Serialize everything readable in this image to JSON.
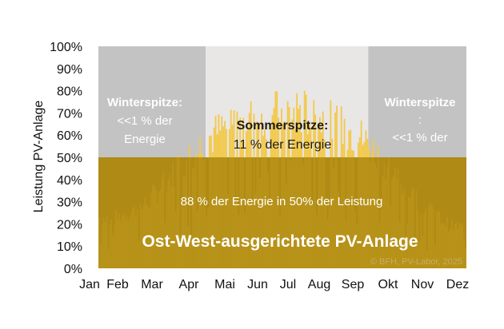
{
  "chart_data": {
    "type": "bar",
    "ylabel": "Leistung PV-Anlage",
    "ylim": [
      0,
      100
    ],
    "y_ticks": [
      "0%",
      "10%",
      "20%",
      "30%",
      "40%",
      "50%",
      "60%",
      "70%",
      "80%",
      "90%",
      "100%"
    ],
    "x_ticks": [
      "Jan",
      "Feb",
      "Mar",
      "Apr",
      "Mai",
      "Jun",
      "Jul",
      "Aug",
      "Sep",
      "Okt",
      "Nov",
      "Dez"
    ],
    "title": "Ost-West-ausgerichtete PV-Anlage",
    "cap_percent": 50,
    "series": [
      {
        "unit": "percent of peak power",
        "x": [
          "Jan",
          "Feb",
          "Mar",
          "Apr",
          "Mai",
          "Jun",
          "Jul",
          "Aug",
          "Sep",
          "Okt",
          "Nov",
          "Dez"
        ],
        "values": [
          26,
          33,
          51,
          67,
          78,
          80,
          83,
          77,
          70,
          53,
          34,
          22
        ]
      }
    ],
    "regions": [
      {
        "name": "winter-left",
        "from_month": "Jan",
        "to_month": "Apr",
        "y_from": 50,
        "y_to": 100,
        "color": "#c4c3c3"
      },
      {
        "name": "summer",
        "from_month": "Apr",
        "to_month": "Sep",
        "y_from": 50,
        "y_to": 100,
        "color": "#e9e6e6"
      },
      {
        "name": "winter-right",
        "from_month": "Sep",
        "to_month": "Dez",
        "y_from": 50,
        "y_to": 100,
        "color": "#c4c3c3"
      },
      {
        "name": "energy-below-cap",
        "y_from": 0,
        "y_to": 50,
        "color": "#b08914"
      }
    ],
    "annotations": {
      "winter_left": [
        "Winterspitze:",
        "<<1 % der",
        "Energie"
      ],
      "summer": [
        "Sommerspitze:",
        "11 % der Energie"
      ],
      "winter_right": [
        "Winterspitze",
        ":",
        "<<1 % der"
      ],
      "below_cap": "88 % der Energie in 50% der Leistung",
      "copyright": "© BFH, PV-Labor, 2025"
    },
    "colors": {
      "winter_band": "#c4c3c3",
      "summer_band": "#e9e6e6",
      "lower_band": "#ae8a14",
      "bars_above_cap": "#f2c94a",
      "bars_below_cap": "#c49d1f",
      "title_text": "#ffffff"
    }
  }
}
